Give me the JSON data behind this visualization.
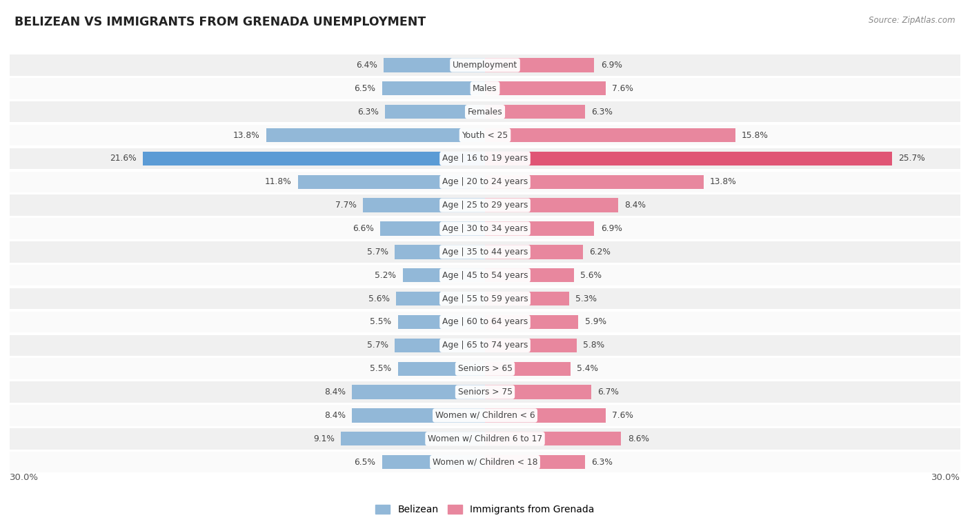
{
  "title": "BELIZEAN VS IMMIGRANTS FROM GRENADA UNEMPLOYMENT",
  "source": "Source: ZipAtlas.com",
  "categories": [
    "Unemployment",
    "Males",
    "Females",
    "Youth < 25",
    "Age | 16 to 19 years",
    "Age | 20 to 24 years",
    "Age | 25 to 29 years",
    "Age | 30 to 34 years",
    "Age | 35 to 44 years",
    "Age | 45 to 54 years",
    "Age | 55 to 59 years",
    "Age | 60 to 64 years",
    "Age | 65 to 74 years",
    "Seniors > 65",
    "Seniors > 75",
    "Women w/ Children < 6",
    "Women w/ Children 6 to 17",
    "Women w/ Children < 18"
  ],
  "belizean": [
    6.4,
    6.5,
    6.3,
    13.8,
    21.6,
    11.8,
    7.7,
    6.6,
    5.7,
    5.2,
    5.6,
    5.5,
    5.7,
    5.5,
    8.4,
    8.4,
    9.1,
    6.5
  ],
  "grenada": [
    6.9,
    7.6,
    6.3,
    15.8,
    25.7,
    13.8,
    8.4,
    6.9,
    6.2,
    5.6,
    5.3,
    5.9,
    5.8,
    5.4,
    6.7,
    7.6,
    8.6,
    6.3
  ],
  "belizean_color": "#92b8d8",
  "grenada_color": "#e8879e",
  "highlight_belizean_color": "#5b9bd5",
  "highlight_grenada_color": "#e05575",
  "row_bg_even": "#f0f0f0",
  "row_bg_odd": "#fafafa",
  "max_val": 30.0,
  "legend_belizean": "Belizean",
  "legend_grenada": "Immigrants from Grenada",
  "bar_height": 0.6,
  "label_fontsize": 8.8,
  "value_fontsize": 8.8
}
